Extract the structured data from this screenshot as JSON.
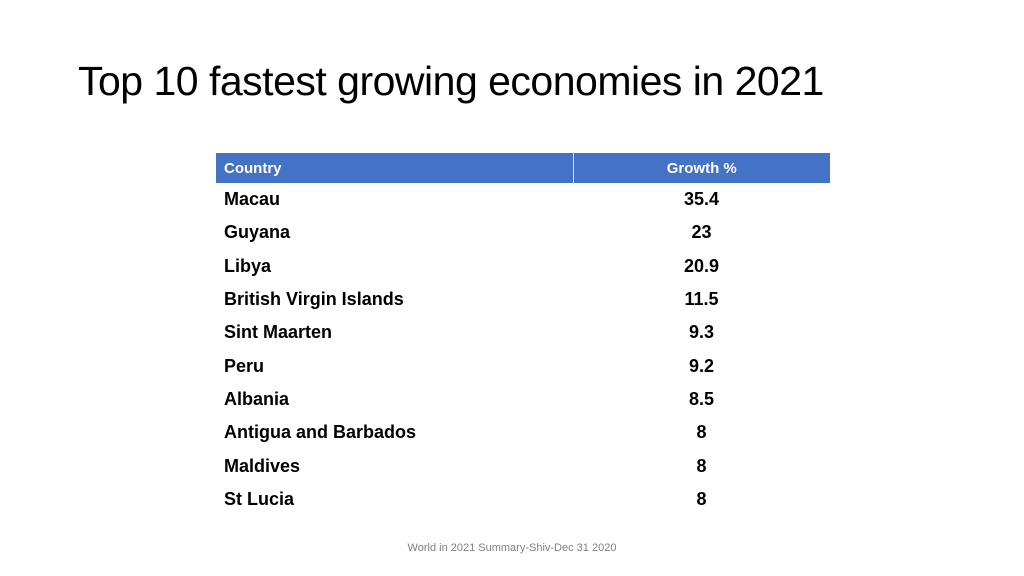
{
  "title": "Top 10 fastest growing economies in 2021",
  "table": {
    "headers": [
      "Country",
      "Growth %"
    ],
    "rows": [
      [
        "Macau",
        "35.4"
      ],
      [
        "Guyana",
        "23"
      ],
      [
        "Libya",
        "20.9"
      ],
      [
        "British Virgin Islands",
        "11.5"
      ],
      [
        "Sint Maarten",
        "9.3"
      ],
      [
        "Peru",
        "9.2"
      ],
      [
        "Albania",
        "8.5"
      ],
      [
        "Antigua and Barbados",
        "8"
      ],
      [
        "Maldives",
        "8"
      ],
      [
        "St Lucia",
        "8"
      ]
    ]
  },
  "footer": "World in 2021 Summary-Shiv-Dec 31 2020",
  "colors": {
    "header_background": "#4472c4",
    "header_text": "#ffffff",
    "footer_text": "#7f7f7f"
  }
}
